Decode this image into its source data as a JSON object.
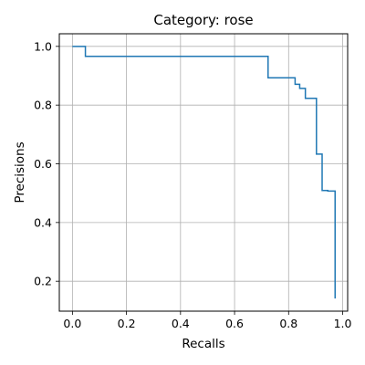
{
  "chart_data": {
    "type": "line",
    "title": "Category: rose",
    "xlabel": "Recalls",
    "ylabel": "Precisions",
    "xlim": [
      -0.0485,
      1.0185
    ],
    "ylim": [
      0.098,
      1.043
    ],
    "xticks": [
      0.0,
      0.2,
      0.4,
      0.6,
      0.8,
      1.0
    ],
    "xtick_labels": [
      "0.0",
      "0.2",
      "0.4",
      "0.6",
      "0.8",
      "1.0"
    ],
    "yticks": [
      0.2,
      0.4,
      0.6,
      0.8,
      1.0
    ],
    "ytick_labels": [
      "0.2",
      "0.4",
      "0.6",
      "0.8",
      "1.0"
    ],
    "grid": true,
    "step": true,
    "series": [
      {
        "color": "#1f77b4",
        "x": [
          0.0,
          0.048,
          0.048,
          0.724,
          0.724,
          0.824,
          0.824,
          0.841,
          0.841,
          0.862,
          0.862,
          0.903,
          0.903,
          0.924,
          0.924,
          0.945,
          0.945,
          0.972,
          0.972
        ],
        "y": [
          1.0,
          1.0,
          0.966,
          0.966,
          0.893,
          0.893,
          0.871,
          0.871,
          0.857,
          0.857,
          0.823,
          0.823,
          0.633,
          0.633,
          0.509,
          0.509,
          0.507,
          0.507,
          0.141
        ]
      }
    ]
  }
}
